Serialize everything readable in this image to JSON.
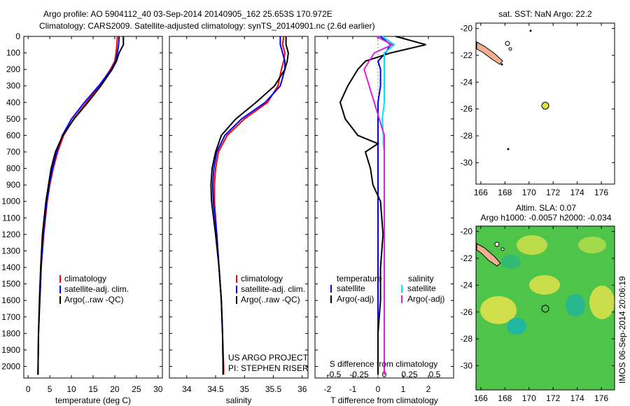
{
  "header": {
    "line1": "Argo profile: AO 5904112_40 03-Sep-2014 20140905_162 25.653S 170.972E",
    "line2": "Climatology: CARS2009. Satellite-adjusted climatology: synTS_20140901.nc (2.6d earlier)"
  },
  "colors": {
    "clim": "#ff0000",
    "sat": "#0000ff",
    "argo": "#000000",
    "sat_s": "#00e5ee",
    "argo_s": "#e020e0"
  },
  "depth_ticks": [
    "0",
    "100",
    "200",
    "300",
    "400",
    "500",
    "600",
    "700",
    "800",
    "900",
    "1000",
    "1100",
    "1200",
    "1300",
    "1400",
    "1500",
    "1600",
    "1700",
    "1800",
    "1900",
    "2000"
  ],
  "legend": {
    "clim": "climatology",
    "sat": "satellite-adj. clim.",
    "argo": "Argo(..raw -QC)",
    "temperature": "temperature",
    "salinity": "salinity",
    "satellite": "satellite",
    "argo_adj": "Argo(-adj)"
  },
  "credit": {
    "line1": "US ARGO PROJECT",
    "line2": "PI: STEPHEN RISER"
  },
  "maps": {
    "sst_title": "sat. SST: NaN Argo: 22.2",
    "sla_title1": "Altim. SLA: 0.07",
    "sla_title2": "Argo h1000: -0.0057 h2000: -0.034",
    "lat_ticks": [
      "-20",
      "-22",
      "-24",
      "-26",
      "-28",
      "-30"
    ],
    "lon_ticks": [
      "166",
      "168",
      "170",
      "172",
      "174",
      "176"
    ],
    "stamp": "IMOS 06-Sep-2014 20:06:19"
  },
  "chart_data": [
    {
      "type": "line",
      "xlabel": "temperature (deg C)",
      "ylabel": "",
      "xlim": [
        -1,
        31
      ],
      "ylim": [
        2070,
        0
      ],
      "xticks": [
        "0",
        "5",
        "10",
        "15",
        "20",
        "25",
        "30"
      ],
      "depth": [
        0,
        50,
        100,
        150,
        200,
        300,
        400,
        500,
        600,
        700,
        800,
        900,
        1000,
        1200,
        1400,
        1600,
        1800,
        2000,
        2050
      ],
      "series": [
        {
          "name": "climatology",
          "color": "clim",
          "values": [
            20.6,
            20.5,
            20.3,
            20.0,
            19.0,
            16.5,
            13.5,
            10.5,
            8.2,
            6.8,
            5.8,
            5.0,
            4.4,
            3.6,
            3.0,
            2.7,
            2.4,
            2.3,
            2.2
          ]
        },
        {
          "name": "satellite-adj. clim.",
          "color": "sat",
          "values": [
            21.0,
            20.9,
            20.6,
            20.2,
            19.2,
            16.3,
            13.0,
            10.0,
            7.9,
            6.6,
            5.6,
            4.9,
            4.3,
            3.5,
            3.0,
            2.7,
            2.4,
            2.3,
            2.3
          ]
        },
        {
          "name": "Argo(..raw -QC)",
          "color": "argo",
          "values": [
            22.0,
            22.0,
            21.0,
            20.4,
            19.4,
            16.8,
            13.8,
            10.6,
            8.0,
            6.3,
            5.3,
            4.7,
            4.1,
            3.3,
            2.9,
            2.6,
            2.4,
            2.3,
            2.3
          ]
        }
      ]
    },
    {
      "type": "line",
      "xlabel": "salinity",
      "ylabel": "",
      "xlim": [
        33.7,
        36.1
      ],
      "ylim": [
        2070,
        0
      ],
      "xticks": [
        "34",
        "34.5",
        "35",
        "35.5",
        "36"
      ],
      "depth": [
        0,
        50,
        100,
        150,
        200,
        300,
        400,
        500,
        600,
        700,
        800,
        900,
        1000,
        1200,
        1400,
        1600,
        1800,
        2000,
        2050
      ],
      "series": [
        {
          "name": "climatology",
          "color": "clim",
          "values": [
            35.68,
            35.66,
            35.7,
            35.68,
            35.64,
            35.58,
            35.4,
            35.0,
            34.7,
            34.55,
            34.5,
            34.48,
            34.48,
            34.52,
            34.56,
            34.6,
            34.62,
            34.64,
            34.64
          ]
        },
        {
          "name": "satellite-adj. clim.",
          "color": "sat",
          "values": [
            35.62,
            35.62,
            35.66,
            35.7,
            35.7,
            35.62,
            35.36,
            34.95,
            34.66,
            34.52,
            34.47,
            34.45,
            34.46,
            34.52,
            34.56,
            34.6,
            34.62,
            34.63,
            34.63
          ]
        },
        {
          "name": "Argo(..raw -QC)",
          "color": "argo",
          "values": [
            35.72,
            35.72,
            35.76,
            35.74,
            35.7,
            35.52,
            35.2,
            34.85,
            34.6,
            34.5,
            34.44,
            34.42,
            34.43,
            34.5,
            34.56,
            34.6,
            34.62,
            34.63,
            34.63
          ]
        }
      ]
    },
    {
      "type": "line",
      "xlabel": "T difference from climatology",
      "title": "S difference from climatology",
      "xlim": [
        -2.5,
        3.0
      ],
      "ylim": [
        2070,
        0
      ],
      "xticks": [
        "-2",
        "-1",
        "0",
        "1",
        "2"
      ],
      "sticks": [
        "-0.5",
        "-0.25",
        "0",
        "0.25",
        "0.5"
      ],
      "depth": [
        0,
        50,
        100,
        150,
        200,
        300,
        400,
        500,
        600,
        650,
        700,
        800,
        900,
        1000,
        1200,
        1400,
        1600,
        1800,
        2000,
        2050
      ],
      "series": [
        {
          "name": "temperature satellite",
          "color": "sat",
          "values": [
            0.1,
            0.5,
            0.3,
            0.0,
            0.1,
            0.1,
            0.0,
            0.0,
            0.0,
            0.0,
            0.0,
            0.0,
            0.0,
            0.0,
            0.0,
            0.0,
            0.0,
            0.0,
            0.0,
            0.0
          ]
        },
        {
          "name": "temperature Argo(-adj)",
          "color": "argo",
          "values": [
            0.7,
            1.9,
            0.5,
            -0.5,
            -0.8,
            -1.2,
            -1.5,
            -1.3,
            -0.8,
            0.0,
            -0.5,
            -0.3,
            -0.2,
            0.1,
            0.2,
            0.1,
            0.1,
            0.0,
            0.0,
            0.0
          ]
        },
        {
          "name": "salinity satellite",
          "color": "sat_s",
          "values": [
            -0.02,
            0.1,
            0.0,
            0.0,
            0.0,
            0.0,
            0.0,
            -0.02,
            -0.01,
            -0.01,
            0.0,
            0.0,
            0.0,
            0.0,
            0.0,
            0.0,
            0.0,
            0.0,
            0.0,
            0.0
          ]
        },
        {
          "name": "salinity Argo(-adj)",
          "color": "argo_s",
          "values": [
            -0.08,
            0.08,
            -0.1,
            -0.15,
            -0.2,
            -0.15,
            -0.1,
            -0.05,
            0.0,
            0.0,
            0.0,
            0.0,
            0.0,
            0.0,
            0.0,
            0.0,
            0.0,
            0.0,
            0.0,
            0.0
          ]
        }
      ]
    }
  ]
}
